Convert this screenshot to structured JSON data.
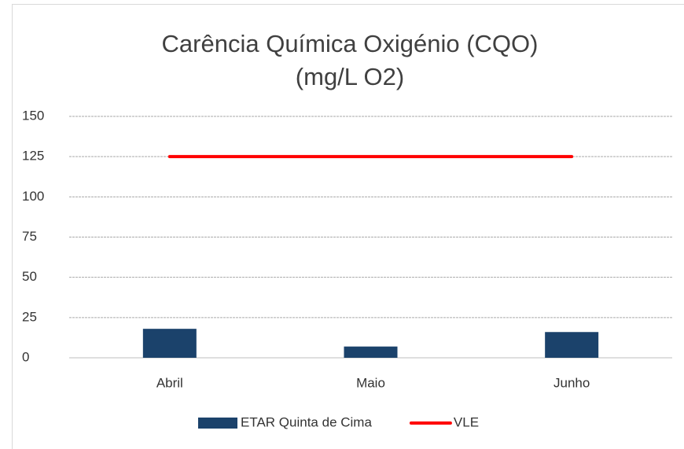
{
  "chart_data": {
    "type": "bar",
    "title": [
      "Carência Química Oxigénio (CQO)",
      "(mg/L O2)"
    ],
    "categories": [
      "Abril",
      "Maio",
      "Junho"
    ],
    "series": [
      {
        "name": "ETAR Quinta de Cima",
        "type": "bar",
        "color": "#1b426b",
        "values": [
          18,
          7,
          16
        ]
      },
      {
        "name": "VLE",
        "type": "line",
        "color": "#ff0000",
        "values": [
          125,
          125,
          125
        ]
      }
    ],
    "ylim": [
      0,
      150
    ],
    "yticks": [
      0,
      25,
      50,
      75,
      100,
      125,
      150
    ],
    "grid": true,
    "legend": "bottom"
  }
}
